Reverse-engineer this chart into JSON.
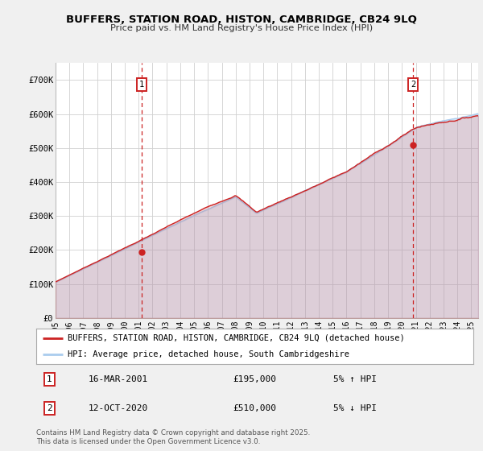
{
  "title1": "BUFFERS, STATION ROAD, HISTON, CAMBRIDGE, CB24 9LQ",
  "title2": "Price paid vs. HM Land Registry's House Price Index (HPI)",
  "bg_color": "#f0f0f0",
  "plot_bg_color": "#ffffff",
  "grid_color": "#d0d0d0",
  "hpi_color": "#aaccee",
  "price_color": "#cc2222",
  "marker1_date": 2001.21,
  "marker1_price": 195000,
  "marker1_label": "16-MAR-2001",
  "marker1_amount": "£195,000",
  "marker1_hpi": "5% ↑ HPI",
  "marker2_date": 2020.79,
  "marker2_price": 510000,
  "marker2_label": "12-OCT-2020",
  "marker2_amount": "£510,000",
  "marker2_hpi": "5% ↓ HPI",
  "legend_line1": "BUFFERS, STATION ROAD, HISTON, CAMBRIDGE, CB24 9LQ (detached house)",
  "legend_line2": "HPI: Average price, detached house, South Cambridgeshire",
  "footer": "Contains HM Land Registry data © Crown copyright and database right 2025.\nThis data is licensed under the Open Government Licence v3.0.",
  "ylim": [
    0,
    750000
  ],
  "yticks": [
    0,
    100000,
    200000,
    300000,
    400000,
    500000,
    600000,
    700000
  ],
  "ytick_labels": [
    "£0",
    "£100K",
    "£200K",
    "£300K",
    "£400K",
    "£500K",
    "£600K",
    "£700K"
  ]
}
